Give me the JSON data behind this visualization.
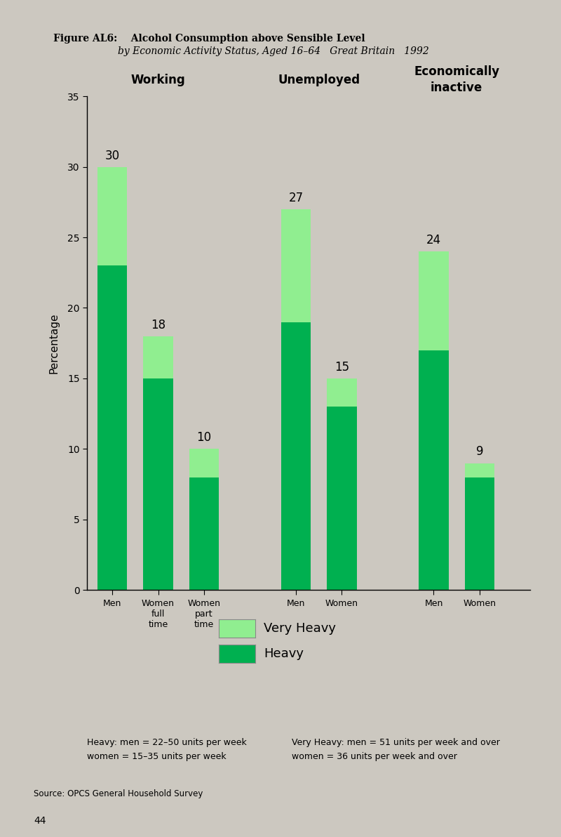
{
  "title_bold": "Figure AL6:    Alcohol Consumption above Sensible Level",
  "title_italic": "by Economic Activity Status, Aged 16–64   Great Britain   1992",
  "background_color": "#ccc8c0",
  "plot_bg_color": "#ccc8c0",
  "heavy_color": "#00b050",
  "very_heavy_color": "#90ee90",
  "ylabel": "Percentage",
  "ylim": [
    0,
    35
  ],
  "yticks": [
    0,
    5,
    10,
    15,
    20,
    25,
    30,
    35
  ],
  "groups": [
    "Working",
    "Unemployed",
    "Economically\ninactive"
  ],
  "group_centers": [
    1,
    4.5,
    7.5
  ],
  "bar_positions": [
    0,
    1,
    2,
    4,
    5,
    7,
    8
  ],
  "bars": [
    {
      "label": "Men",
      "heavy": 23,
      "very_heavy": 7,
      "total": 30
    },
    {
      "label": "Women\nfull\ntime",
      "heavy": 15,
      "very_heavy": 3,
      "total": 18
    },
    {
      "label": "Women\npart\ntime",
      "heavy": 8,
      "very_heavy": 2,
      "total": 10
    },
    {
      "label": "Men",
      "heavy": 19,
      "very_heavy": 8,
      "total": 27
    },
    {
      "label": "Women",
      "heavy": 13,
      "very_heavy": 2,
      "total": 15
    },
    {
      "label": "Men",
      "heavy": 17,
      "very_heavy": 7,
      "total": 24
    },
    {
      "label": "Women",
      "heavy": 8,
      "very_heavy": 1,
      "total": 9
    }
  ],
  "bar_width": 0.65,
  "xlim": [
    -0.55,
    9.1
  ],
  "legend_very_heavy": "Very Heavy",
  "legend_heavy": "Heavy",
  "footnote_left": "Heavy: men = 22–50 units per week\nwomen = 15–35 units per week",
  "footnote_right": "Very Heavy: men = 51 units per week and over\nwomen = 36 units per week and over",
  "source": "Source: OPCS General Household Survey",
  "page_number": "44"
}
